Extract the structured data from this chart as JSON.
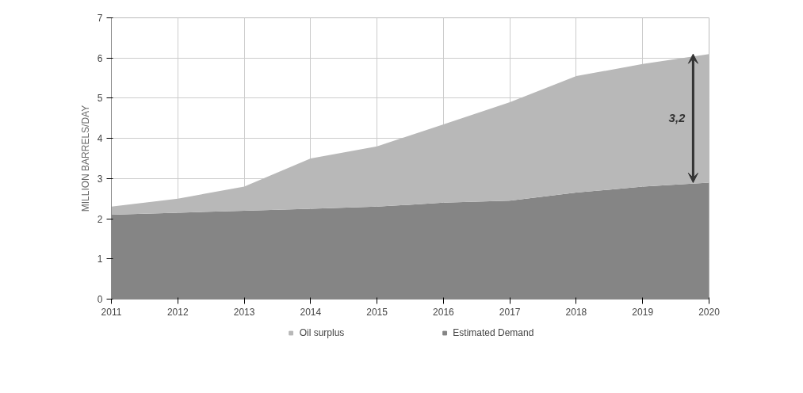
{
  "chart_data": {
    "type": "area",
    "stacked": true,
    "ylabel": "MILLION BARRELS/DAY",
    "x": [
      2011,
      2012,
      2013,
      2014,
      2015,
      2016,
      2017,
      2018,
      2019,
      2020
    ],
    "series": [
      {
        "name": "Estimated Demand",
        "color": "#858585",
        "values": [
          2.1,
          2.15,
          2.2,
          2.25,
          2.3,
          2.4,
          2.45,
          2.65,
          2.8,
          2.9
        ]
      },
      {
        "name": "Oil surplus",
        "color": "#b8b8b8",
        "values": [
          0.2,
          0.35,
          0.6,
          1.25,
          1.5,
          1.95,
          2.45,
          2.9,
          3.05,
          3.2
        ]
      }
    ],
    "xlim": [
      2011,
      2020
    ],
    "ylim": [
      0,
      7
    ],
    "xticks": [
      2011,
      2012,
      2013,
      2014,
      2015,
      2016,
      2017,
      2018,
      2019,
      2020
    ],
    "yticks": [
      0,
      1,
      2,
      3,
      4,
      5,
      6,
      7
    ],
    "grid": true,
    "legend": "bottom",
    "annotations": [
      "3,2"
    ]
  }
}
